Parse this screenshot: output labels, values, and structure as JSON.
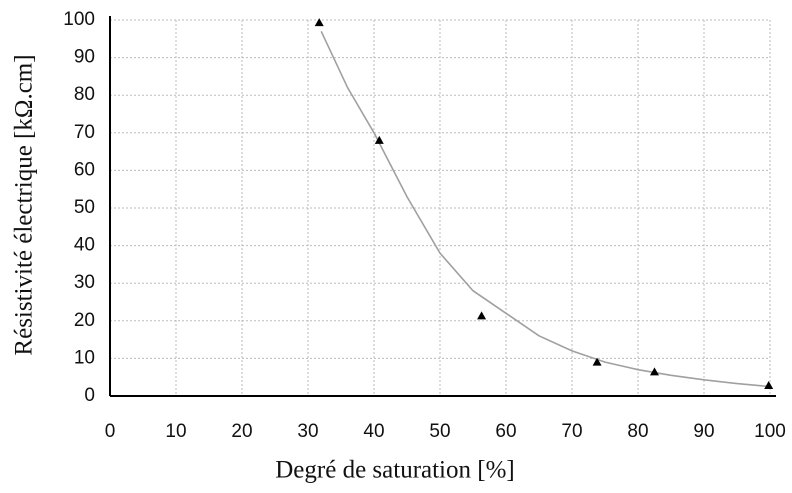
{
  "chart_data": {
    "type": "scatter",
    "xlabel": "Degré de saturation [%]",
    "ylabel": "Résistivité électrique [kΩ.cm]",
    "xlim": [
      0,
      100
    ],
    "xticks": [
      0,
      10,
      20,
      30,
      40,
      50,
      60,
      70,
      80,
      90,
      100
    ],
    "ylim": [
      0,
      100
    ],
    "yticks": [
      0,
      10,
      20,
      30,
      40,
      50,
      60,
      70,
      80,
      90,
      100
    ],
    "grid": true,
    "series": [
      {
        "marker": "triangle",
        "color": "#000000",
        "x": [
          31.7,
          40.8,
          56.3,
          73.8,
          82.5,
          99.8
        ],
        "values": [
          99.3,
          68,
          21.3,
          9,
          6.4,
          2.8
        ]
      }
    ],
    "trendline": {
      "color": "#a0a0a0",
      "x": [
        32,
        36,
        40,
        45,
        50,
        55,
        60,
        65,
        70,
        75,
        80,
        85,
        90,
        95,
        100
      ],
      "values": [
        97,
        82,
        70,
        53,
        38,
        28,
        22,
        16,
        12,
        9,
        7,
        5.5,
        4.3,
        3.3,
        2.5
      ]
    }
  }
}
